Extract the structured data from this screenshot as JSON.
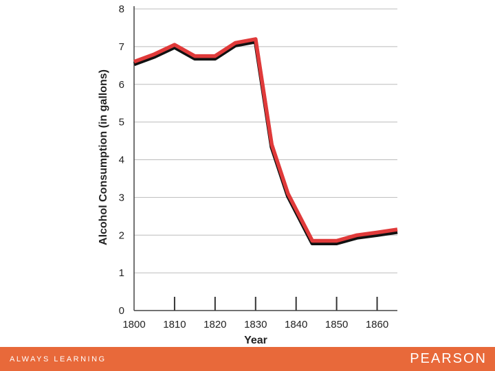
{
  "chart_data": {
    "type": "line",
    "xlabel": "Year",
    "ylabel": "Alcohol Consumption (in gallons)",
    "xlim": [
      1800,
      1865
    ],
    "ylim": [
      0,
      8
    ],
    "x_ticks": [
      1800,
      1810,
      1820,
      1830,
      1840,
      1850,
      1860
    ],
    "y_ticks": [
      0,
      1,
      2,
      3,
      4,
      5,
      6,
      7,
      8
    ],
    "grid": "horizontal",
    "series": [
      {
        "color": "#e03a3a",
        "shadow_color": "#111111",
        "x": [
          1800,
          1805,
          1810,
          1815,
          1820,
          1825,
          1830,
          1834,
          1838,
          1844,
          1850,
          1855,
          1860,
          1865
        ],
        "y": [
          6.6,
          6.8,
          7.05,
          6.75,
          6.75,
          7.1,
          7.2,
          4.4,
          3.1,
          1.85,
          1.85,
          2.0,
          2.07,
          2.15
        ]
      }
    ]
  },
  "footer": {
    "left_text": "ALWAYS LEARNING",
    "right_text": "PEARSON",
    "background": "#e8693a"
  }
}
